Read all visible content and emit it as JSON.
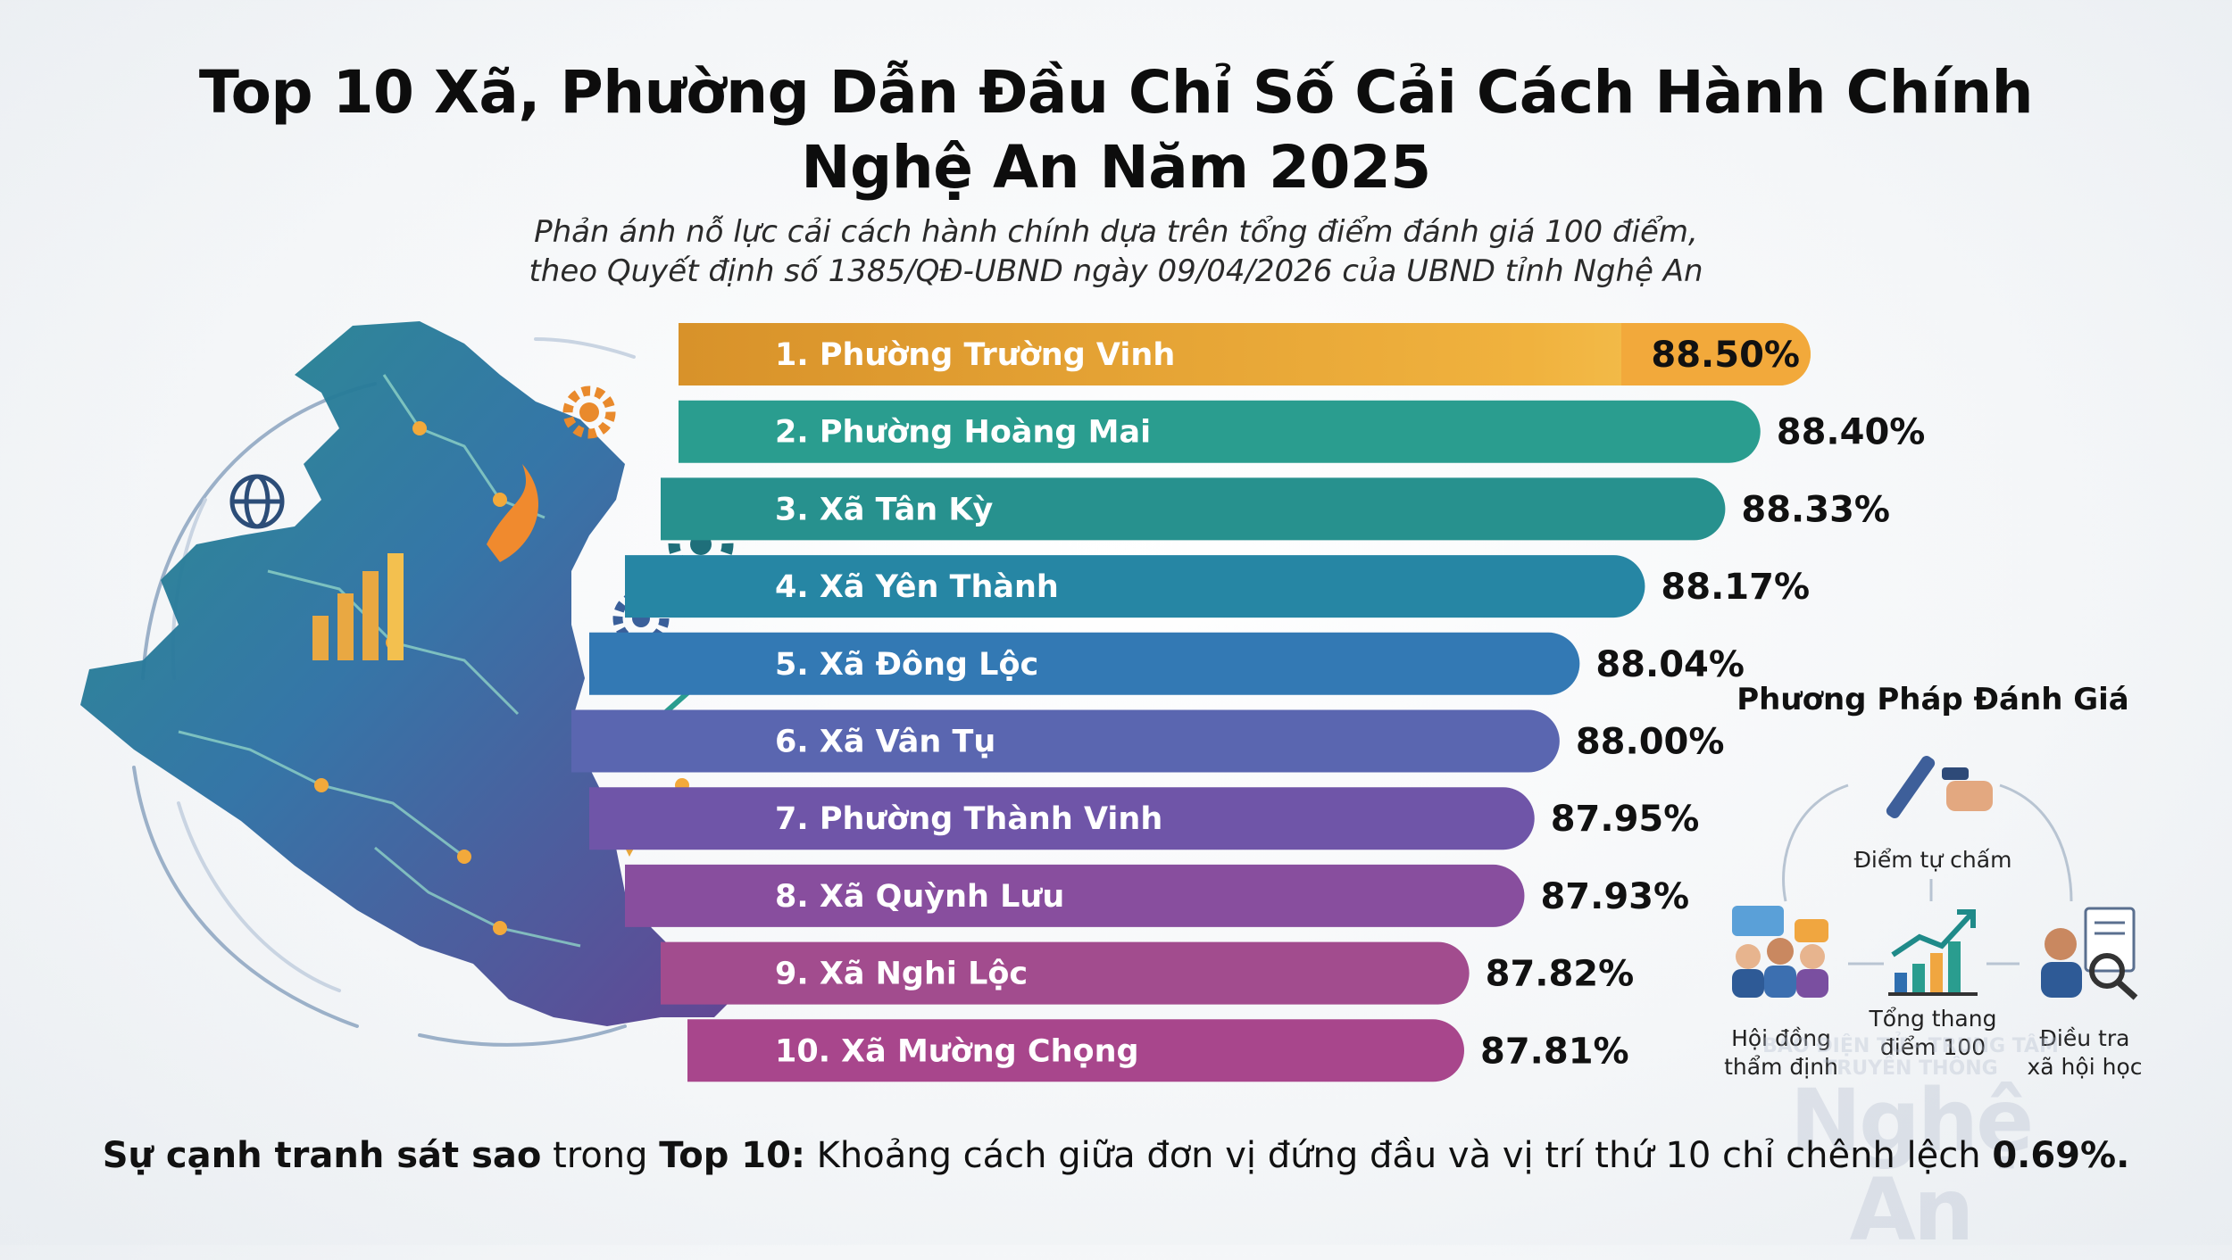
{
  "title_line1": "Top 10 Xã, Phường Dẫn Đầu Chỉ Số Cải Cách Hành Chính",
  "title_line2": "Nghệ An Năm 2025",
  "subtitle_line1": "Phản ánh nỗ lực cải cách hành chính dựa trên tổng điểm đánh giá 100 điểm,",
  "subtitle_line2": "theo Quyết định số 1385/QĐ-UBND ngày 09/04/2026 của UBND tỉnh Nghệ An",
  "chart_data": {
    "type": "bar",
    "orientation": "horizontal",
    "categories": [
      "1. Phường Trường Vinh",
      "2. Phường Hoàng Mai",
      "3. Xã Tân Kỳ",
      "4. Xã Yên Thành",
      "5. Xã Đông Lộc",
      "6. Xã Vân Tụ",
      "7. Phường Thành Vinh",
      "8. Xã Quỳnh Lưu",
      "9. Xã Nghi Lộc",
      "10. Xã Mường Chọng"
    ],
    "values": [
      88.5,
      88.4,
      88.33,
      88.17,
      88.04,
      88.0,
      87.95,
      87.93,
      87.82,
      87.81
    ],
    "value_labels": [
      "88.50%",
      "88.40%",
      "88.33%",
      "88.17%",
      "88.04%",
      "88.00%",
      "87.95%",
      "87.93%",
      "87.82%",
      "87.81%"
    ],
    "bar_colors": [
      "#eab03c",
      "#2a9d8f",
      "#27918e",
      "#2686a4",
      "#3379b4",
      "#5a66b0",
      "#6f55a8",
      "#884e9e",
      "#a24c8e",
      "#a8468c"
    ],
    "highlight_color": "#f2a93b",
    "xlabel": "",
    "ylabel": ""
  },
  "method": {
    "title": "Phương Pháp Đánh Giá",
    "steps": [
      {
        "icon": "pen-hand-icon",
        "label": "Điểm tự chấm"
      },
      {
        "icon": "council-people-icon",
        "label_line1": "Hội đồng",
        "label_line2": "thẩm định"
      },
      {
        "icon": "growth-chart-icon",
        "label_line1": "Tổng thang",
        "label_line2": "điểm 100"
      },
      {
        "icon": "investigator-magnifier-icon",
        "label_line1": "Điều tra",
        "label_line2": "xã hội học"
      }
    ]
  },
  "watermark": {
    "small": "BÁO ĐIỆN TỬ - TRUNG TÂM TRUYỀN THÔNG",
    "big": "Nghệ An"
  },
  "footer": {
    "bold1": "Sự cạnh tranh sát sao",
    "text1": " trong ",
    "bold2": "Top 10:",
    "text2": " Khoảng cách giữa đơn vị đứng đầu và vị trí thứ 10 chỉ chênh lệch ",
    "bold3": "0.69%."
  }
}
